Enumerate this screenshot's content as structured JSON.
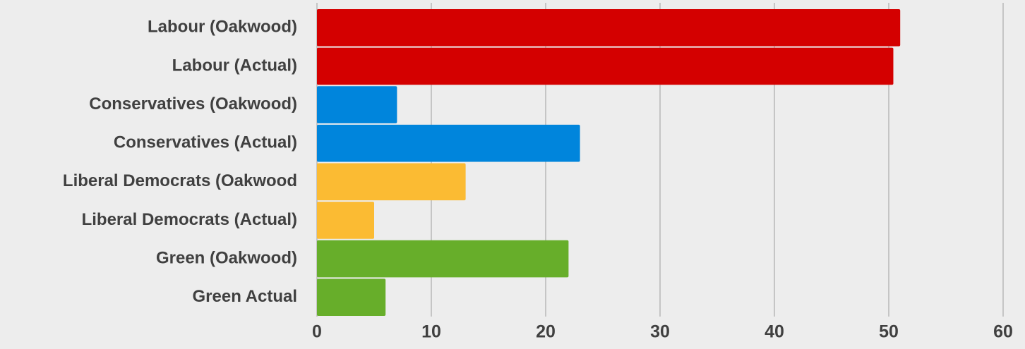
{
  "chart_data": {
    "type": "hbar",
    "categories": [
      "Labour (Oakwood)",
      "Labour (Actual)",
      "Conservatives (Oakwood)",
      "Conservatives (Actual)",
      "Liberal Democrats (Oakwood",
      "Liberal Democrats (Actual)",
      "Green (Oakwood)",
      "Green Actual"
    ],
    "values": [
      51,
      50.4,
      7,
      23,
      13,
      5,
      22,
      6
    ],
    "colors": [
      "#d40000",
      "#d40000",
      "#0085dc",
      "#0085dc",
      "#fbbb33",
      "#fbbb33",
      "#67ae2a",
      "#67ae2a"
    ],
    "xlim": [
      0,
      60
    ],
    "xticks": [
      0,
      10,
      20,
      30,
      40,
      50,
      60
    ],
    "grid": true
  }
}
